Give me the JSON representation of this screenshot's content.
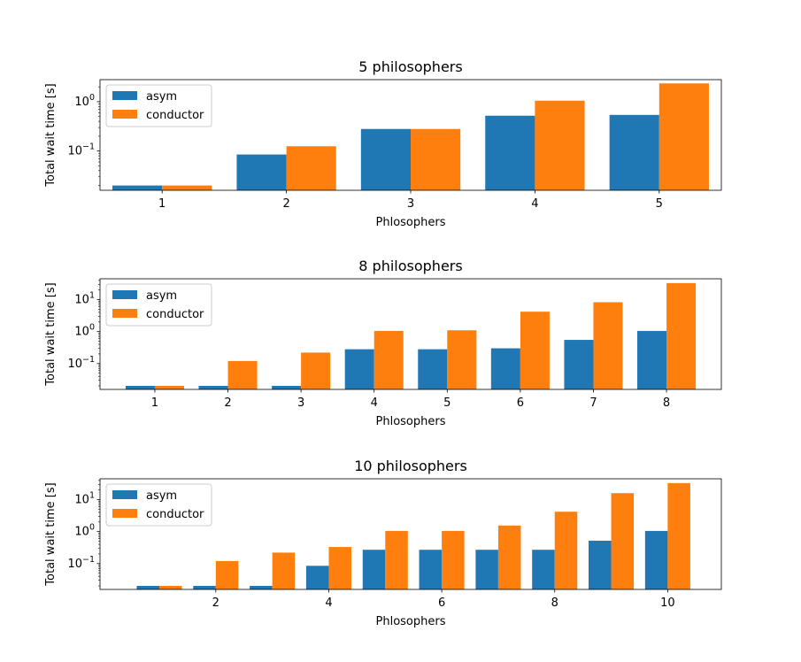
{
  "colors": {
    "asym": "#1f77b4",
    "conductor": "#ff7f0e"
  },
  "chart_data": [
    {
      "type": "bar",
      "title": "5 philosophers",
      "xlabel": "Phlosophers",
      "ylabel": "Total wait time [s]",
      "yscale": "log",
      "ylim": [
        0.016,
        2.8
      ],
      "x": [
        1,
        2,
        3,
        4,
        5
      ],
      "xticks": [
        "1",
        "2",
        "3",
        "4",
        "5"
      ],
      "yticks": [
        {
          "value": 1,
          "label": "10^0"
        },
        {
          "value": 0.1,
          "label": "10^-1"
        }
      ],
      "legend_position": "top-left",
      "series": [
        {
          "name": "asym",
          "values": [
            0.02,
            0.085,
            0.28,
            0.52,
            0.54
          ]
        },
        {
          "name": "conductor",
          "values": [
            0.02,
            0.125,
            0.28,
            1.05,
            2.35
          ]
        }
      ]
    },
    {
      "type": "bar",
      "title": "8 philosophers",
      "xlabel": "Phlosophers",
      "ylabel": "Total wait time [s]",
      "yscale": "log",
      "ylim": [
        0.0155,
        45
      ],
      "x": [
        1,
        2,
        3,
        4,
        5,
        6,
        7,
        8
      ],
      "xticks": [
        "1",
        "2",
        "3",
        "4",
        "5",
        "6",
        "7",
        "8"
      ],
      "yticks": [
        {
          "value": 10,
          "label": "10^1"
        },
        {
          "value": 1,
          "label": "10^0"
        },
        {
          "value": 0.1,
          "label": "10^-1"
        }
      ],
      "legend_position": "top-left",
      "series": [
        {
          "name": "asym",
          "values": [
            0.02,
            0.02,
            0.02,
            0.28,
            0.28,
            0.3,
            0.55,
            1.05
          ]
        },
        {
          "name": "conductor",
          "values": [
            0.02,
            0.12,
            0.22,
            1.05,
            1.1,
            4.2,
            8.3,
            33
          ]
        }
      ]
    },
    {
      "type": "bar",
      "title": "10 philosophers",
      "xlabel": "Phlosophers",
      "ylabel": "Total wait time [s]",
      "yscale": "log",
      "ylim": [
        0.0155,
        45
      ],
      "x": [
        1,
        2,
        3,
        4,
        5,
        6,
        7,
        8,
        9,
        10
      ],
      "xticks": [
        "2",
        "4",
        "6",
        "8",
        "10"
      ],
      "xtick_values": [
        2,
        4,
        6,
        8,
        10
      ],
      "yticks": [
        {
          "value": 10,
          "label": "10^1"
        },
        {
          "value": 1,
          "label": "10^0"
        },
        {
          "value": 0.1,
          "label": "10^-1"
        }
      ],
      "legend_position": "top-left",
      "series": [
        {
          "name": "asym",
          "values": [
            0.02,
            0.02,
            0.02,
            0.085,
            0.27,
            0.27,
            0.27,
            0.27,
            0.52,
            1.05
          ]
        },
        {
          "name": "conductor",
          "values": [
            0.02,
            0.12,
            0.22,
            0.33,
            1.05,
            1.05,
            1.55,
            4.2,
            16,
            33
          ]
        }
      ]
    }
  ]
}
